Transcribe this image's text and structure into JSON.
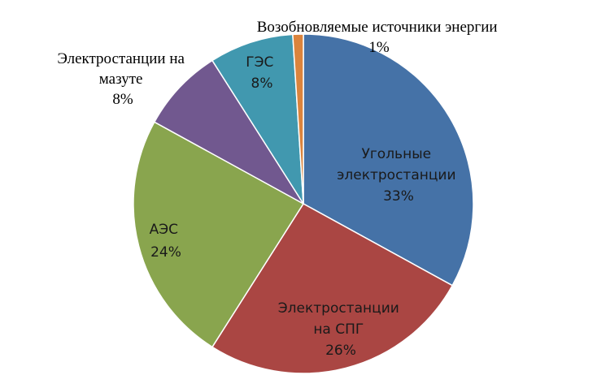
{
  "chart_data": {
    "type": "pie",
    "title": "",
    "slices": [
      {
        "label": "Угольные электростанции",
        "value": 33,
        "display": "33%",
        "color": "#4572A7"
      },
      {
        "label": "Электростанции на СПГ",
        "value": 26,
        "display": "26%",
        "color": "#AA4643"
      },
      {
        "label": "АЭС",
        "value": 24,
        "display": "24%",
        "color": "#89A54E"
      },
      {
        "label": "Электростанции на мазуте",
        "value": 8,
        "display": "8%",
        "color": "#71588F"
      },
      {
        "label": "ГЭС",
        "value": 8,
        "display": "8%",
        "color": "#4198AF"
      },
      {
        "label": "Возобновляемые источники энергии",
        "value": 1,
        "display": "1%",
        "color": "#DB843D"
      }
    ],
    "label_lines": {
      "coal": [
        "Угольные",
        "электростанции"
      ],
      "lng": [
        "Электростанции",
        "на СПГ"
      ],
      "npp": [
        "АЭС"
      ],
      "oil": [
        "Электростанции на",
        "мазуте"
      ],
      "hydro": [
        "ГЭС"
      ],
      "renew": [
        "Возобновляемые источники энергии"
      ]
    },
    "legend": "none",
    "data_labels": "category and percent"
  }
}
